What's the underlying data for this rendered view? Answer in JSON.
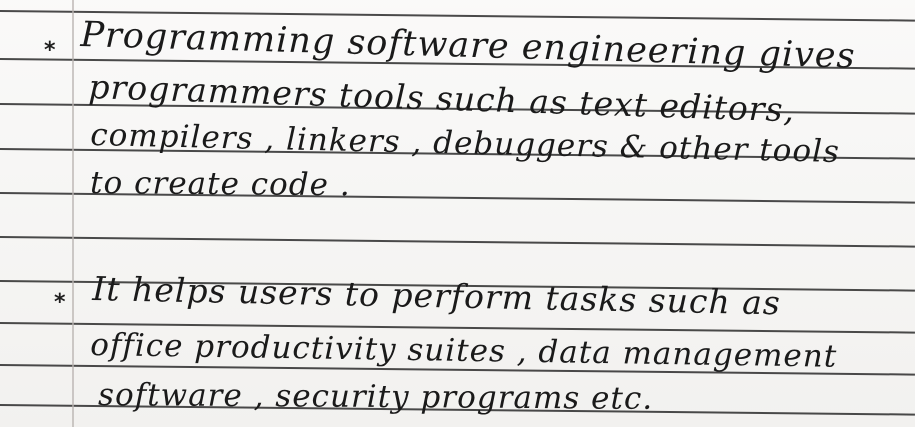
{
  "bullets": [
    "*",
    "*"
  ],
  "paragraph1": {
    "lines": [
      "Programming software engineering gives",
      "programmers tools such as text editors,",
      "compilers , linkers , debuggers & other tools",
      "to create code ."
    ]
  },
  "paragraph2": {
    "lines": [
      "It helps users to perform tasks such as",
      "office productivity suites , data management",
      "software , security programs etc."
    ]
  }
}
